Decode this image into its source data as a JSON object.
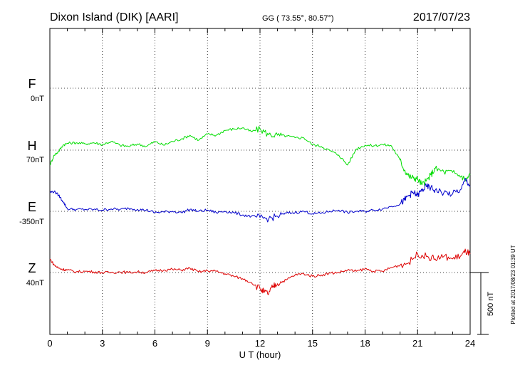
{
  "header": {
    "station": "Dixon Island (DIK)  [AARI]",
    "coords": "GG ( 73.55°,  80.57°)",
    "date": "2017/07/23"
  },
  "colors": {
    "F": "#ffa500",
    "H": "#00dd00",
    "E": "#0000cc",
    "Z": "#dd0000",
    "grid": "#000000"
  },
  "scale_bar_label": "500 nT",
  "plotted_note": "Plotted at 2017/08/23 01:39 UT",
  "chart_data": {
    "type": "line",
    "title": "Dixon Island (DIK)  [AARI]",
    "xlabel": "U T (hour)",
    "xlim": [
      0,
      24
    ],
    "xticks": [
      "0",
      "3",
      "6",
      "9",
      "12",
      "15",
      "18",
      "21",
      "24"
    ],
    "scale_nT": 500,
    "series": [
      {
        "name": "F",
        "baseline_label": "0nT",
        "offset_nT": 0,
        "values": []
      },
      {
        "name": "H",
        "baseline_label": "70nT",
        "offset_nT": 70,
        "x": [
          0,
          0.25,
          0.5,
          0.75,
          1,
          1.5,
          2,
          2.5,
          3,
          3.5,
          4,
          4.5,
          5,
          5.5,
          6,
          6.5,
          7,
          7.5,
          8,
          8.5,
          9,
          9.5,
          10,
          10.5,
          11,
          11.5,
          12,
          12.5,
          13,
          13.5,
          14,
          14.5,
          15,
          15.5,
          16,
          16.5,
          17,
          17.5,
          18,
          18.5,
          19,
          19.5,
          20,
          20.25,
          20.5,
          20.75,
          21,
          21.25,
          21.5,
          21.75,
          22,
          22.5,
          23,
          23.5,
          23.75,
          24
        ],
        "values": [
          -120,
          -40,
          -10,
          40,
          55,
          60,
          50,
          60,
          45,
          70,
          40,
          30,
          50,
          30,
          70,
          40,
          70,
          90,
          120,
          80,
          130,
          120,
          160,
          170,
          180,
          150,
          170,
          125,
          120,
          115,
          100,
          100,
          45,
          30,
          -5,
          -40,
          -120,
          10,
          40,
          35,
          45,
          35,
          -80,
          -160,
          -210,
          -225,
          -230,
          -280,
          -250,
          -200,
          -150,
          -175,
          -180,
          -210,
          -240,
          -200
        ]
      },
      {
        "name": "E",
        "baseline_label": "-350nT",
        "offset_nT": -350,
        "x": [
          0,
          0.25,
          0.5,
          0.75,
          1,
          1.5,
          2,
          2.5,
          3,
          3.5,
          4,
          4.5,
          5,
          5.5,
          6,
          6.5,
          7,
          7.5,
          8,
          8.5,
          9,
          9.5,
          10,
          10.5,
          11,
          11.5,
          12,
          12.5,
          13,
          13.5,
          14,
          14.5,
          15,
          15.5,
          16,
          16.5,
          17,
          17.5,
          18,
          18.5,
          19,
          19.5,
          20,
          20.25,
          20.5,
          20.75,
          21,
          21.25,
          21.5,
          21.75,
          22,
          22.5,
          23,
          23.5,
          23.75,
          24
        ],
        "values": [
          155,
          160,
          130,
          80,
          20,
          15,
          15,
          15,
          10,
          20,
          15,
          25,
          15,
          10,
          -10,
          -5,
          0,
          -10,
          15,
          0,
          10,
          -10,
          0,
          -10,
          -30,
          -40,
          -50,
          -60,
          -40,
          -15,
          -10,
          0,
          -20,
          -15,
          0,
          10,
          -10,
          0,
          0,
          10,
          20,
          40,
          60,
          90,
          130,
          150,
          130,
          170,
          200,
          190,
          170,
          150,
          140,
          180,
          260,
          200
        ]
      },
      {
        "name": "Z",
        "baseline_label": "40nT",
        "offset_nT": 40,
        "x": [
          0,
          0.25,
          0.5,
          0.75,
          1,
          1.5,
          2,
          2.5,
          3,
          3.5,
          4,
          4.5,
          5,
          5.5,
          6,
          6.5,
          7,
          7.5,
          8,
          8.5,
          9,
          9.5,
          10,
          10.5,
          11,
          11.5,
          12,
          12.25,
          12.5,
          12.75,
          13,
          13.5,
          14,
          14.5,
          15,
          15.5,
          16,
          16.5,
          17,
          17.5,
          18,
          18.5,
          19,
          19.5,
          20,
          20.5,
          21,
          21.5,
          22,
          22.5,
          23,
          23.5,
          23.75,
          24
        ],
        "values": [
          110,
          60,
          35,
          25,
          20,
          5,
          10,
          5,
          0,
          0,
          5,
          0,
          5,
          0,
          15,
          20,
          25,
          20,
          35,
          5,
          15,
          10,
          -10,
          -30,
          -50,
          -80,
          -130,
          -160,
          -170,
          -110,
          -90,
          -60,
          -20,
          -10,
          -30,
          -20,
          -5,
          0,
          20,
          10,
          30,
          10,
          10,
          40,
          60,
          80,
          150,
          130,
          110,
          130,
          110,
          140,
          170,
          150
        ]
      }
    ]
  }
}
